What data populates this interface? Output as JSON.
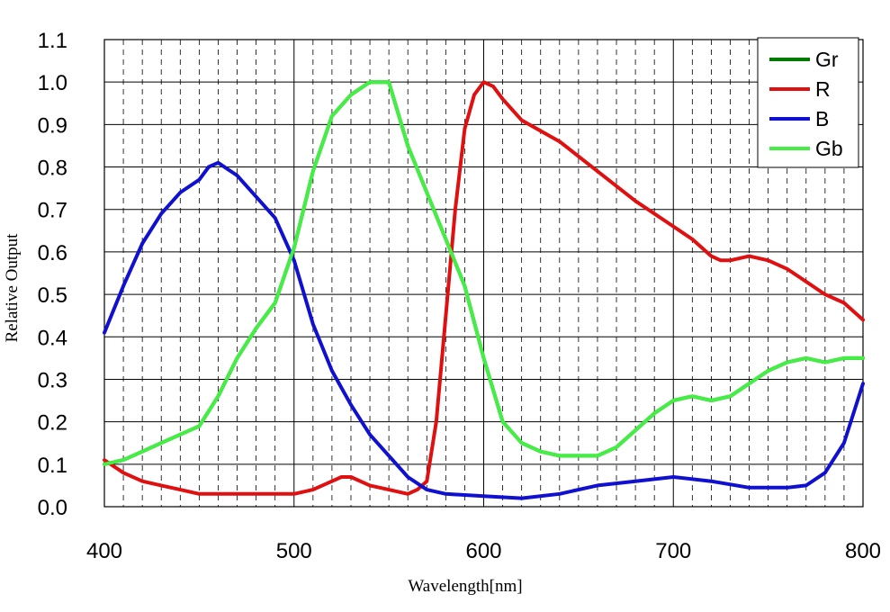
{
  "chart_data": {
    "type": "line",
    "title": "",
    "xlabel": "Wavelength[nm]",
    "ylabel": "Relative Output",
    "xlim": [
      400,
      800
    ],
    "ylim": [
      0.0,
      1.1
    ],
    "x_major_ticks": [
      400,
      500,
      600,
      700,
      800
    ],
    "x_tick_labels": [
      "400",
      "500",
      "600",
      "700",
      "800"
    ],
    "x_minor_step": 10,
    "y_ticks": [
      0.0,
      0.1,
      0.2,
      0.3,
      0.4,
      0.5,
      0.6,
      0.7,
      0.8,
      0.9,
      1.0,
      1.1
    ],
    "y_tick_labels": [
      "0.0",
      "0.1",
      "0.2",
      "0.3",
      "0.4",
      "0.5",
      "0.6",
      "0.7",
      "0.8",
      "0.9",
      "1.0",
      "1.1"
    ],
    "grid": true,
    "legend_position": "top-right",
    "series": [
      {
        "name": "Gr",
        "color": "#007a00",
        "points": [
          [
            400,
            0.1
          ],
          [
            410,
            0.11
          ],
          [
            420,
            0.13
          ],
          [
            430,
            0.15
          ],
          [
            440,
            0.17
          ],
          [
            450,
            0.19
          ],
          [
            460,
            0.26
          ],
          [
            470,
            0.35
          ],
          [
            480,
            0.42
          ],
          [
            490,
            0.48
          ],
          [
            500,
            0.61
          ],
          [
            510,
            0.79
          ],
          [
            520,
            0.92
          ],
          [
            530,
            0.97
          ],
          [
            540,
            1.0
          ],
          [
            550,
            1.0
          ],
          [
            560,
            0.85
          ],
          [
            570,
            0.74
          ],
          [
            580,
            0.63
          ],
          [
            590,
            0.52
          ],
          [
            600,
            0.35
          ],
          [
            610,
            0.2
          ],
          [
            620,
            0.15
          ],
          [
            630,
            0.13
          ],
          [
            640,
            0.12
          ],
          [
            650,
            0.12
          ],
          [
            660,
            0.12
          ],
          [
            670,
            0.14
          ],
          [
            680,
            0.18
          ],
          [
            690,
            0.22
          ],
          [
            700,
            0.25
          ],
          [
            710,
            0.26
          ],
          [
            720,
            0.25
          ],
          [
            730,
            0.26
          ],
          [
            740,
            0.29
          ],
          [
            750,
            0.32
          ],
          [
            760,
            0.34
          ],
          [
            770,
            0.35
          ],
          [
            780,
            0.34
          ],
          [
            790,
            0.35
          ],
          [
            800,
            0.35
          ]
        ]
      },
      {
        "name": "R",
        "color": "#e01010",
        "points": [
          [
            400,
            0.11
          ],
          [
            410,
            0.08
          ],
          [
            420,
            0.06
          ],
          [
            430,
            0.05
          ],
          [
            440,
            0.04
          ],
          [
            450,
            0.03
          ],
          [
            460,
            0.03
          ],
          [
            470,
            0.03
          ],
          [
            480,
            0.03
          ],
          [
            490,
            0.03
          ],
          [
            500,
            0.03
          ],
          [
            510,
            0.04
          ],
          [
            520,
            0.06
          ],
          [
            525,
            0.07
          ],
          [
            530,
            0.07
          ],
          [
            540,
            0.05
          ],
          [
            550,
            0.04
          ],
          [
            560,
            0.03
          ],
          [
            565,
            0.04
          ],
          [
            570,
            0.06
          ],
          [
            575,
            0.2
          ],
          [
            580,
            0.45
          ],
          [
            585,
            0.7
          ],
          [
            590,
            0.89
          ],
          [
            595,
            0.97
          ],
          [
            600,
            1.0
          ],
          [
            605,
            0.99
          ],
          [
            610,
            0.96
          ],
          [
            620,
            0.91
          ],
          [
            640,
            0.86
          ],
          [
            660,
            0.79
          ],
          [
            680,
            0.72
          ],
          [
            700,
            0.66
          ],
          [
            710,
            0.63
          ],
          [
            720,
            0.59
          ],
          [
            725,
            0.58
          ],
          [
            730,
            0.58
          ],
          [
            740,
            0.59
          ],
          [
            750,
            0.58
          ],
          [
            760,
            0.56
          ],
          [
            770,
            0.53
          ],
          [
            780,
            0.5
          ],
          [
            790,
            0.48
          ],
          [
            800,
            0.44
          ]
        ]
      },
      {
        "name": "B",
        "color": "#1010d0",
        "points": [
          [
            400,
            0.41
          ],
          [
            410,
            0.52
          ],
          [
            420,
            0.62
          ],
          [
            430,
            0.69
          ],
          [
            440,
            0.74
          ],
          [
            450,
            0.77
          ],
          [
            455,
            0.8
          ],
          [
            460,
            0.81
          ],
          [
            470,
            0.78
          ],
          [
            480,
            0.73
          ],
          [
            490,
            0.68
          ],
          [
            500,
            0.58
          ],
          [
            510,
            0.43
          ],
          [
            520,
            0.32
          ],
          [
            530,
            0.24
          ],
          [
            540,
            0.17
          ],
          [
            550,
            0.12
          ],
          [
            560,
            0.07
          ],
          [
            570,
            0.04
          ],
          [
            580,
            0.03
          ],
          [
            600,
            0.025
          ],
          [
            620,
            0.02
          ],
          [
            640,
            0.03
          ],
          [
            660,
            0.05
          ],
          [
            680,
            0.06
          ],
          [
            700,
            0.07
          ],
          [
            720,
            0.06
          ],
          [
            740,
            0.045
          ],
          [
            760,
            0.045
          ],
          [
            770,
            0.05
          ],
          [
            780,
            0.08
          ],
          [
            790,
            0.15
          ],
          [
            800,
            0.29
          ]
        ]
      },
      {
        "name": "Gb",
        "color": "#44ee44",
        "points": [
          [
            400,
            0.1
          ],
          [
            410,
            0.11
          ],
          [
            420,
            0.13
          ],
          [
            430,
            0.15
          ],
          [
            440,
            0.17
          ],
          [
            450,
            0.19
          ],
          [
            460,
            0.26
          ],
          [
            470,
            0.35
          ],
          [
            480,
            0.42
          ],
          [
            490,
            0.48
          ],
          [
            500,
            0.61
          ],
          [
            510,
            0.79
          ],
          [
            520,
            0.92
          ],
          [
            530,
            0.97
          ],
          [
            540,
            1.0
          ],
          [
            550,
            1.0
          ],
          [
            560,
            0.85
          ],
          [
            570,
            0.74
          ],
          [
            580,
            0.63
          ],
          [
            590,
            0.52
          ],
          [
            600,
            0.35
          ],
          [
            610,
            0.2
          ],
          [
            620,
            0.15
          ],
          [
            630,
            0.13
          ],
          [
            640,
            0.12
          ],
          [
            650,
            0.12
          ],
          [
            660,
            0.12
          ],
          [
            670,
            0.14
          ],
          [
            680,
            0.18
          ],
          [
            690,
            0.22
          ],
          [
            700,
            0.25
          ],
          [
            710,
            0.26
          ],
          [
            720,
            0.25
          ],
          [
            730,
            0.26
          ],
          [
            740,
            0.29
          ],
          [
            750,
            0.32
          ],
          [
            760,
            0.34
          ],
          [
            770,
            0.35
          ],
          [
            780,
            0.34
          ],
          [
            790,
            0.35
          ],
          [
            800,
            0.35
          ]
        ]
      }
    ]
  }
}
